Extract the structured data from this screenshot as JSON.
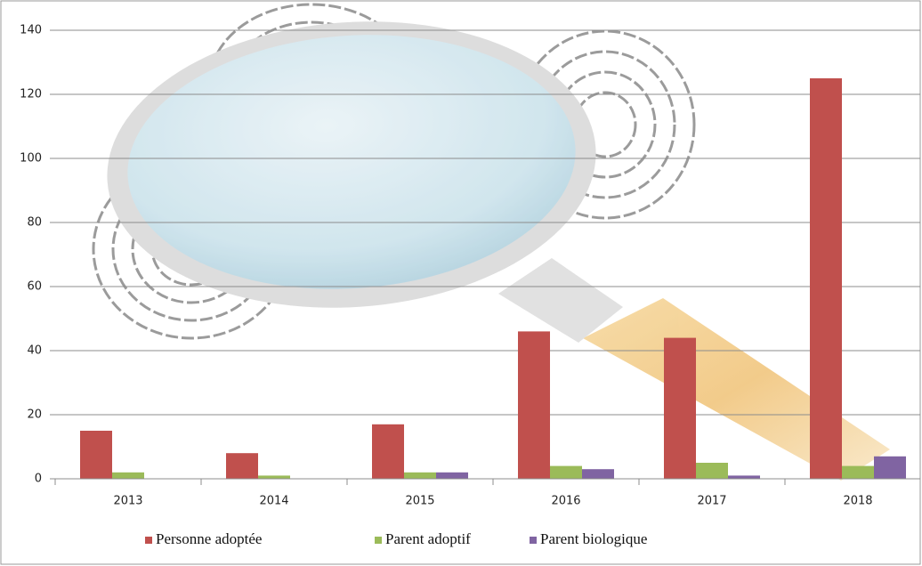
{
  "chart_data": {
    "type": "bar",
    "categories": [
      "2013",
      "2014",
      "2015",
      "2016",
      "2017",
      "2018"
    ],
    "series": [
      {
        "name": "Personne adoptée",
        "color": "#c0504d",
        "values": [
          15,
          8,
          17,
          46,
          44,
          125
        ]
      },
      {
        "name": "Parent adoptif",
        "color": "#9bbb59",
        "values": [
          2,
          1,
          2,
          4,
          5,
          4
        ]
      },
      {
        "name": "Parent biologique",
        "color": "#8064a2",
        "values": [
          0,
          0,
          2,
          3,
          1,
          7
        ]
      }
    ],
    "ylim": [
      0,
      140
    ],
    "yticks": [
      0,
      20,
      40,
      60,
      80,
      100,
      120,
      140
    ],
    "grid": true,
    "legend": "bottom"
  }
}
